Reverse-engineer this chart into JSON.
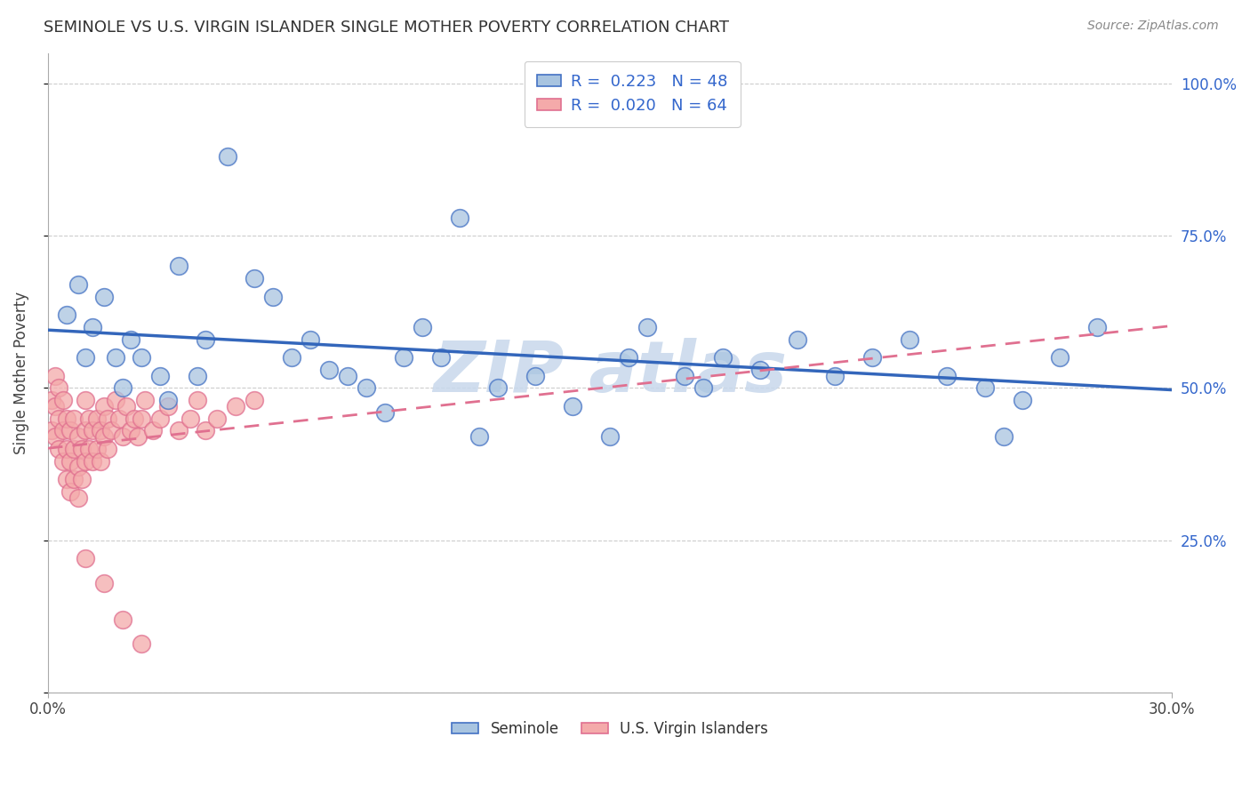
{
  "title": "SEMINOLE VS U.S. VIRGIN ISLANDER SINGLE MOTHER POVERTY CORRELATION CHART",
  "source": "Source: ZipAtlas.com",
  "ylabel": "Single Mother Poverty",
  "xlim": [
    0.0,
    0.3
  ],
  "ylim": [
    0.0,
    1.05
  ],
  "ytick_vals": [
    0.0,
    0.25,
    0.5,
    0.75,
    1.0
  ],
  "ytick_labels": [
    "",
    "25.0%",
    "50.0%",
    "75.0%",
    "100.0%"
  ],
  "legend_labels": [
    "Seminole",
    "U.S. Virgin Islanders"
  ],
  "R_seminole": 0.223,
  "N_seminole": 48,
  "R_usvi": 0.02,
  "N_usvi": 64,
  "blue_fill": "#A8C4E0",
  "blue_edge": "#4472C4",
  "pink_fill": "#F4AAAA",
  "pink_edge": "#E07090",
  "blue_line": "#3366BB",
  "pink_line": "#E07090",
  "watermark_color": "#C8D8EC",
  "seminole_x": [
    0.005,
    0.008,
    0.01,
    0.012,
    0.015,
    0.018,
    0.02,
    0.022,
    0.025,
    0.03,
    0.032,
    0.035,
    0.04,
    0.042,
    0.048,
    0.055,
    0.06,
    0.065,
    0.07,
    0.075,
    0.08,
    0.085,
    0.09,
    0.095,
    0.1,
    0.105,
    0.11,
    0.115,
    0.12,
    0.13,
    0.14,
    0.15,
    0.155,
    0.16,
    0.17,
    0.175,
    0.18,
    0.19,
    0.2,
    0.21,
    0.22,
    0.23,
    0.24,
    0.25,
    0.255,
    0.26,
    0.27,
    0.28
  ],
  "seminole_y": [
    0.62,
    0.67,
    0.55,
    0.6,
    0.65,
    0.55,
    0.5,
    0.58,
    0.55,
    0.52,
    0.48,
    0.7,
    0.52,
    0.58,
    0.88,
    0.68,
    0.65,
    0.55,
    0.58,
    0.53,
    0.52,
    0.5,
    0.46,
    0.55,
    0.6,
    0.55,
    0.78,
    0.42,
    0.5,
    0.52,
    0.47,
    0.42,
    0.55,
    0.6,
    0.52,
    0.5,
    0.55,
    0.53,
    0.58,
    0.52,
    0.55,
    0.58,
    0.52,
    0.5,
    0.42,
    0.48,
    0.55,
    0.6
  ],
  "usvi_x": [
    0.001,
    0.001,
    0.002,
    0.002,
    0.002,
    0.003,
    0.003,
    0.003,
    0.004,
    0.004,
    0.004,
    0.005,
    0.005,
    0.005,
    0.006,
    0.006,
    0.006,
    0.007,
    0.007,
    0.007,
    0.008,
    0.008,
    0.008,
    0.009,
    0.009,
    0.01,
    0.01,
    0.01,
    0.011,
    0.011,
    0.012,
    0.012,
    0.013,
    0.013,
    0.014,
    0.014,
    0.015,
    0.015,
    0.016,
    0.016,
    0.017,
    0.018,
    0.019,
    0.02,
    0.021,
    0.022,
    0.023,
    0.024,
    0.025,
    0.026,
    0.028,
    0.03,
    0.032,
    0.035,
    0.038,
    0.04,
    0.042,
    0.045,
    0.05,
    0.055,
    0.025,
    0.02,
    0.015,
    0.01
  ],
  "usvi_y": [
    0.43,
    0.48,
    0.42,
    0.47,
    0.52,
    0.4,
    0.45,
    0.5,
    0.38,
    0.43,
    0.48,
    0.35,
    0.4,
    0.45,
    0.33,
    0.38,
    0.43,
    0.35,
    0.4,
    0.45,
    0.32,
    0.37,
    0.42,
    0.35,
    0.4,
    0.38,
    0.43,
    0.48,
    0.4,
    0.45,
    0.38,
    0.43,
    0.4,
    0.45,
    0.38,
    0.43,
    0.42,
    0.47,
    0.4,
    0.45,
    0.43,
    0.48,
    0.45,
    0.42,
    0.47,
    0.43,
    0.45,
    0.42,
    0.45,
    0.48,
    0.43,
    0.45,
    0.47,
    0.43,
    0.45,
    0.48,
    0.43,
    0.45,
    0.47,
    0.48,
    0.08,
    0.12,
    0.18,
    0.22
  ]
}
